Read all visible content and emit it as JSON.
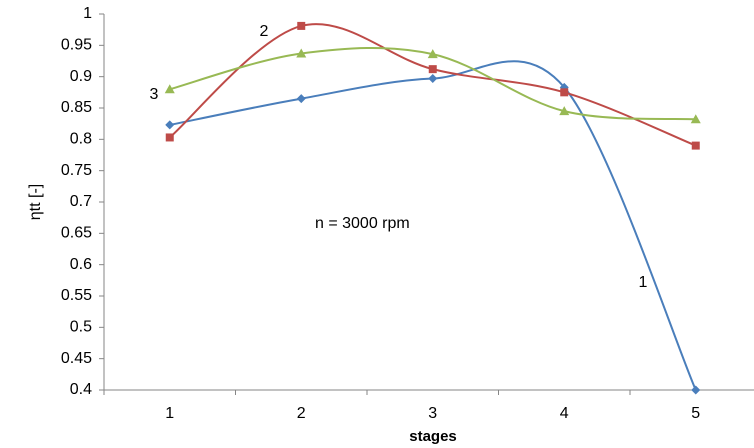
{
  "chart_data": {
    "type": "line",
    "x_label": "stages",
    "y_label": "ηtt [-]",
    "annotation": "n = 3000 rpm",
    "categories": [
      "1",
      "2",
      "3",
      "4",
      "5"
    ],
    "series": [
      {
        "name": "1",
        "color": "#4a7ebb",
        "marker": "diamond",
        "values": [
          0.823,
          0.865,
          0.897,
          0.883,
          0.4
        ]
      },
      {
        "name": "2",
        "color": "#be4b48",
        "marker": "square",
        "values": [
          0.803,
          0.981,
          0.912,
          0.875,
          0.79
        ]
      },
      {
        "name": "3",
        "color": "#98b954",
        "marker": "triangle",
        "values": [
          0.88,
          0.937,
          0.936,
          0.845,
          0.832
        ]
      }
    ],
    "smooth": true,
    "ylim": [
      0.4,
      1
    ],
    "yticks": [
      0.4,
      0.45,
      0.5,
      0.55,
      0.6,
      0.65,
      0.7,
      0.75,
      0.8,
      0.85,
      0.9,
      0.95,
      1
    ]
  }
}
